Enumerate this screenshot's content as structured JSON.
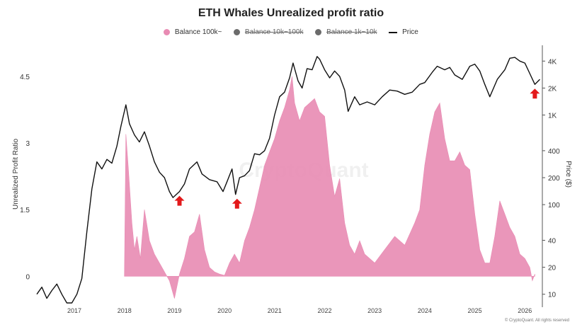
{
  "chart_data": {
    "type": "area",
    "title": "ETH Whales Unrealized profit ratio",
    "ylabel": "Unrealized Profit Ratio",
    "y2label": "Price ($)",
    "y_ticks": [
      0,
      1.5,
      3,
      4.5
    ],
    "y_tick_labels": [
      "0",
      "1.5",
      "3",
      "4.5"
    ],
    "ylim": [
      -0.6,
      5.2
    ],
    "y2_scale": "log",
    "y2_ticks": [
      10,
      20,
      40,
      100,
      200,
      400,
      1000,
      2000,
      4000
    ],
    "y2_tick_labels": [
      "10",
      "20",
      "40",
      "100",
      "200",
      "400",
      "1K",
      "2K",
      "4K"
    ],
    "y2lim": [
      8,
      6000
    ],
    "x_ticks": [
      2017,
      2018,
      2019,
      2020,
      2021,
      2022,
      2023,
      2024,
      2025,
      2026
    ],
    "x_tick_labels": [
      "2017",
      "2018",
      "2019",
      "2020",
      "2021",
      "2022",
      "2023",
      "2024",
      "2025",
      "2026"
    ],
    "xlim": [
      2016.25,
      2026.35
    ],
    "legend": [
      {
        "label": "Balance 100k~",
        "color": "#e88bb3",
        "marker": "dot",
        "hidden": false
      },
      {
        "label": "Balance 10k~100k",
        "color": "#6b6b6b",
        "marker": "dot",
        "hidden": true
      },
      {
        "label": "Balance 1k~10k",
        "color": "#6b6b6b",
        "marker": "dot",
        "hidden": true
      },
      {
        "label": "Price",
        "color": "#111111",
        "marker": "line",
        "hidden": false
      }
    ],
    "series": [
      {
        "name": "Balance 100k~",
        "color": "#e88bb3",
        "axis": "left",
        "x": [
          2018.0,
          2018.03,
          2018.08,
          2018.15,
          2018.2,
          2018.25,
          2018.32,
          2018.4,
          2018.5,
          2018.6,
          2018.7,
          2018.8,
          2018.9,
          2019.0,
          2019.1,
          2019.2,
          2019.3,
          2019.4,
          2019.5,
          2019.6,
          2019.7,
          2019.8,
          2019.9,
          2020.0,
          2020.1,
          2020.2,
          2020.3,
          2020.4,
          2020.5,
          2020.6,
          2020.7,
          2020.8,
          2020.9,
          2021.0,
          2021.1,
          2021.2,
          2021.3,
          2021.35,
          2021.4,
          2021.5,
          2021.6,
          2021.7,
          2021.8,
          2021.9,
          2022.0,
          2022.1,
          2022.2,
          2022.3,
          2022.4,
          2022.5,
          2022.6,
          2022.7,
          2022.8,
          2022.9,
          2023.0,
          2023.2,
          2023.4,
          2023.6,
          2023.8,
          2023.9,
          2024.0,
          2024.1,
          2024.2,
          2024.3,
          2024.4,
          2024.5,
          2024.6,
          2024.7,
          2024.8,
          2024.9,
          2025.0,
          2025.1,
          2025.2,
          2025.3,
          2025.4,
          2025.5,
          2025.6,
          2025.7,
          2025.8,
          2025.9,
          2026.0,
          2026.1,
          2026.15,
          2026.2
        ],
        "values": [
          0,
          3.2,
          2.4,
          1.2,
          0.6,
          0.9,
          0.4,
          1.5,
          0.8,
          0.5,
          0.3,
          0.1,
          -0.1,
          -0.5,
          0.05,
          0.4,
          0.9,
          1.0,
          1.4,
          0.6,
          0.2,
          0.1,
          0.05,
          0.02,
          0.3,
          0.5,
          0.3,
          0.8,
          1.1,
          1.5,
          2.0,
          2.5,
          2.8,
          3.1,
          3.5,
          3.8,
          4.2,
          4.5,
          3.9,
          3.5,
          3.8,
          3.9,
          4.0,
          3.7,
          3.6,
          2.5,
          1.8,
          2.2,
          1.2,
          0.7,
          0.5,
          0.8,
          0.5,
          0.4,
          0.3,
          0.6,
          0.9,
          0.7,
          1.2,
          1.5,
          2.5,
          3.2,
          3.7,
          3.9,
          3.1,
          2.6,
          2.6,
          2.8,
          2.5,
          2.4,
          1.4,
          0.6,
          0.3,
          0.3,
          0.9,
          1.7,
          1.4,
          1.1,
          0.9,
          0.5,
          0.4,
          0.2,
          -0.1,
          0.05
        ]
      },
      {
        "name": "Price",
        "color": "#111111",
        "axis": "right",
        "x": [
          2016.25,
          2016.35,
          2016.45,
          2016.55,
          2016.65,
          2016.75,
          2016.85,
          2016.95,
          2017.05,
          2017.15,
          2017.25,
          2017.35,
          2017.45,
          2017.55,
          2017.65,
          2017.75,
          2017.85,
          2017.93,
          2018.03,
          2018.1,
          2018.2,
          2018.3,
          2018.4,
          2018.5,
          2018.6,
          2018.7,
          2018.8,
          2018.9,
          2018.97,
          2019.1,
          2019.2,
          2019.3,
          2019.45,
          2019.55,
          2019.7,
          2019.85,
          2019.97,
          2020.05,
          2020.15,
          2020.22,
          2020.3,
          2020.4,
          2020.5,
          2020.6,
          2020.7,
          2020.8,
          2020.9,
          2021.0,
          2021.1,
          2021.2,
          2021.3,
          2021.37,
          2021.47,
          2021.55,
          2021.65,
          2021.75,
          2021.85,
          2021.9,
          2022.0,
          2022.1,
          2022.2,
          2022.3,
          2022.4,
          2022.47,
          2022.6,
          2022.7,
          2022.85,
          2023.0,
          2023.15,
          2023.3,
          2023.45,
          2023.6,
          2023.75,
          2023.9,
          2024.0,
          2024.15,
          2024.25,
          2024.4,
          2024.5,
          2024.6,
          2024.75,
          2024.9,
          2025.0,
          2025.1,
          2025.2,
          2025.3,
          2025.45,
          2025.6,
          2025.7,
          2025.8,
          2025.9,
          2026.0,
          2026.1,
          2026.2,
          2026.3
        ],
        "values": [
          10,
          12,
          9,
          11,
          13,
          10,
          8,
          8,
          10,
          15,
          50,
          150,
          300,
          250,
          320,
          290,
          450,
          750,
          1300,
          800,
          600,
          500,
          650,
          450,
          300,
          230,
          200,
          140,
          120,
          140,
          170,
          250,
          300,
          220,
          190,
          180,
          140,
          180,
          250,
          130,
          200,
          210,
          240,
          370,
          360,
          400,
          550,
          1000,
          1600,
          1800,
          2600,
          3800,
          2400,
          2000,
          3300,
          3200,
          4500,
          4200,
          3200,
          2600,
          3100,
          2700,
          1900,
          1100,
          1600,
          1300,
          1400,
          1300,
          1600,
          1900,
          1850,
          1700,
          1800,
          2200,
          2300,
          3000,
          3500,
          3200,
          3400,
          2800,
          2500,
          3500,
          3700,
          3100,
          2200,
          1600,
          2500,
          3200,
          4300,
          4400,
          4000,
          3800,
          2900,
          2200,
          2500
        ]
      }
    ],
    "annotations": [
      {
        "type": "arrow-up",
        "x": 2019.1,
        "color": "#e3191b"
      },
      {
        "type": "arrow-up",
        "x": 2020.25,
        "color": "#e3191b"
      },
      {
        "type": "arrow-up",
        "x": 2026.2,
        "color": "#e3191b"
      }
    ]
  },
  "footer": "© CryptoQuant. All rights reserved",
  "watermark": "CryptoQuant"
}
